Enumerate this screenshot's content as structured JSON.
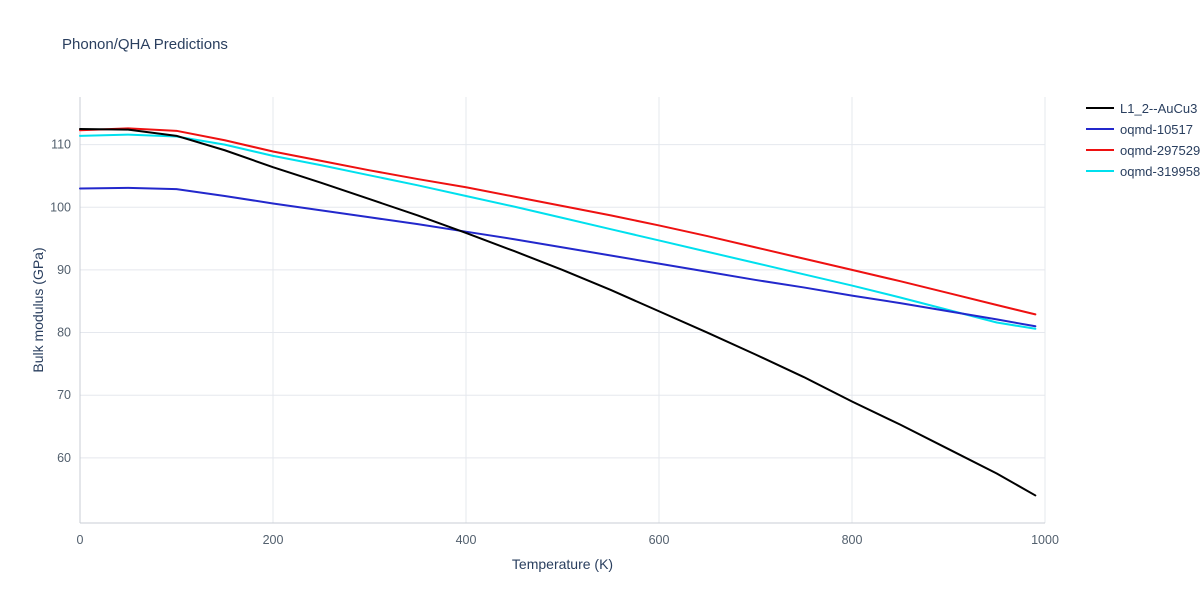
{
  "chart_data": {
    "type": "line",
    "title": "Phonon/QHA Predictions",
    "xlabel": "Temperature (K)",
    "ylabel": "Bulk modulus (GPa)",
    "xlim": [
      0,
      1000
    ],
    "ylim": [
      49.6,
      117.6
    ],
    "xticks": [
      0,
      200,
      400,
      600,
      800,
      1000
    ],
    "yticks": [
      60,
      70,
      80,
      90,
      100,
      110
    ],
    "grid": true,
    "legend_position": "top-right-outside",
    "colors": {
      "title_text": "#2a3f5f",
      "tick_text": "#53606e",
      "gridline": "#e5e8ee",
      "axis_line": "#c8cdd4"
    },
    "series": [
      {
        "name": "L1_2--AuCu3",
        "color": "#000000",
        "x": [
          0,
          50,
          100,
          150,
          200,
          250,
          300,
          350,
          400,
          450,
          500,
          550,
          600,
          650,
          700,
          750,
          800,
          850,
          900,
          950,
          990
        ],
        "y": [
          112.5,
          112.4,
          111.4,
          109.1,
          106.4,
          103.9,
          101.3,
          98.7,
          95.9,
          93.0,
          90.0,
          86.8,
          83.4,
          80.0,
          76.5,
          72.9,
          69.0,
          65.3,
          61.4,
          57.5,
          54.0
        ]
      },
      {
        "name": "oqmd-10517",
        "color": "#2328cc",
        "x": [
          0,
          50,
          100,
          150,
          200,
          250,
          300,
          350,
          400,
          450,
          500,
          550,
          600,
          650,
          700,
          750,
          800,
          850,
          900,
          950,
          990
        ],
        "y": [
          103.0,
          103.1,
          102.9,
          101.8,
          100.6,
          99.5,
          98.4,
          97.3,
          96.1,
          94.9,
          93.6,
          92.3,
          91.0,
          89.7,
          88.4,
          87.2,
          85.9,
          84.7,
          83.4,
          82.1,
          81.0
        ]
      },
      {
        "name": "oqmd-297529",
        "color": "#ee1111",
        "x": [
          0,
          50,
          100,
          150,
          200,
          250,
          300,
          350,
          400,
          450,
          500,
          550,
          600,
          650,
          700,
          750,
          800,
          850,
          900,
          950,
          990
        ],
        "y": [
          112.3,
          112.6,
          112.2,
          110.7,
          108.9,
          107.4,
          105.9,
          104.5,
          103.2,
          101.7,
          100.2,
          98.7,
          97.1,
          95.4,
          93.6,
          91.8,
          90.0,
          88.2,
          86.3,
          84.4,
          82.9
        ]
      },
      {
        "name": "oqmd-319958",
        "color": "#00e0ee",
        "x": [
          0,
          50,
          100,
          150,
          200,
          250,
          300,
          350,
          400,
          450,
          500,
          550,
          600,
          650,
          700,
          750,
          800,
          850,
          900,
          950,
          990
        ],
        "y": [
          111.4,
          111.6,
          111.3,
          110.0,
          108.2,
          106.7,
          105.1,
          103.5,
          101.8,
          100.1,
          98.3,
          96.5,
          94.7,
          92.9,
          91.1,
          89.3,
          87.5,
          85.6,
          83.6,
          81.6,
          80.6
        ]
      }
    ]
  }
}
